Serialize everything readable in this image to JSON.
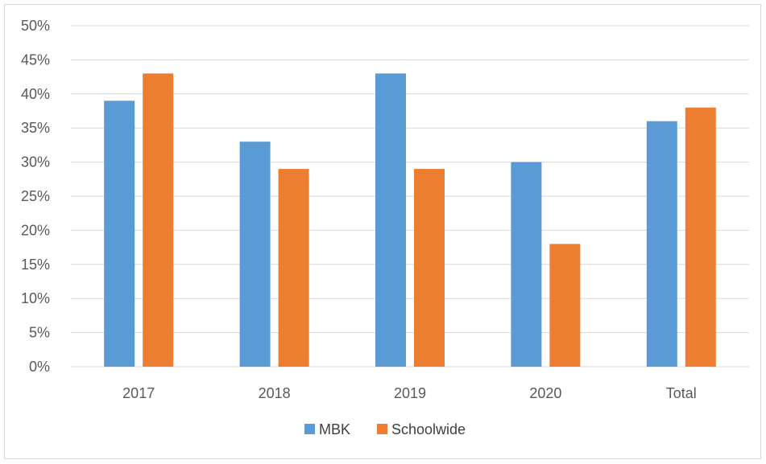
{
  "chart_data": {
    "type": "bar",
    "categories": [
      "2017",
      "2018",
      "2019",
      "2020",
      "Total"
    ],
    "series": [
      {
        "name": "MBK",
        "values": [
          39,
          33,
          43,
          30,
          36
        ],
        "color": "#5b9bd5"
      },
      {
        "name": "Schoolwide",
        "values": [
          43,
          29,
          29,
          18,
          38
        ],
        "color": "#ed7d31"
      }
    ],
    "ylim": [
      0,
      50
    ],
    "yticks": [
      "0%",
      "5%",
      "10%",
      "15%",
      "20%",
      "25%",
      "30%",
      "35%",
      "40%",
      "45%",
      "50%"
    ],
    "ytick_values": [
      0,
      5,
      10,
      15,
      20,
      25,
      30,
      35,
      40,
      45,
      50
    ],
    "grid": true,
    "legend_position": "bottom",
    "title": "",
    "xlabel": "",
    "ylabel": ""
  }
}
